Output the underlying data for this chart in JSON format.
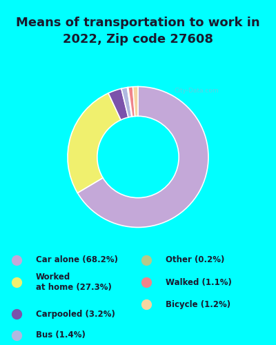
{
  "title": "Means of transportation to work in\n2022, Zip code 27608",
  "title_fontsize": 13,
  "background_color": "#00FFFF",
  "chart_bg_color": "#d4ede1",
  "slices": [
    {
      "label": "Car alone (68.2%)",
      "value": 68.2,
      "color": "#c4a8d8"
    },
    {
      "label": "Worked at home (27.3%)",
      "value": 27.3,
      "color": "#f0f06e"
    },
    {
      "label": "Carpooled (3.2%)",
      "value": 3.2,
      "color": "#7b52ab"
    },
    {
      "label": "Bus (1.4%)",
      "value": 1.4,
      "color": "#b0b8e0"
    },
    {
      "label": "Other (0.2%)",
      "value": 0.2,
      "color": "#b5c98a"
    },
    {
      "label": "Walked (1.1%)",
      "value": 1.1,
      "color": "#f0848a"
    },
    {
      "label": "Bicycle (1.2%)",
      "value": 1.2,
      "color": "#f5d5a0"
    }
  ],
  "legend_items_col1": [
    {
      "label": "Car alone (68.2%)",
      "color": "#c4a8d8"
    },
    {
      "label": "Worked\nat home (27.3%)",
      "color": "#f0f06e"
    },
    {
      "label": "Carpooled (3.2%)",
      "color": "#7b52ab"
    },
    {
      "label": "Bus (1.4%)",
      "color": "#b0b8e0"
    }
  ],
  "legend_items_col2": [
    {
      "label": "Other (0.2%)",
      "color": "#b5c98a"
    },
    {
      "label": "Walked (1.1%)",
      "color": "#f0848a"
    },
    {
      "label": "Bicycle (1.2%)",
      "color": "#f5d5a0"
    }
  ],
  "watermark": "City-Data.com",
  "text_color": "#1a1a2e"
}
